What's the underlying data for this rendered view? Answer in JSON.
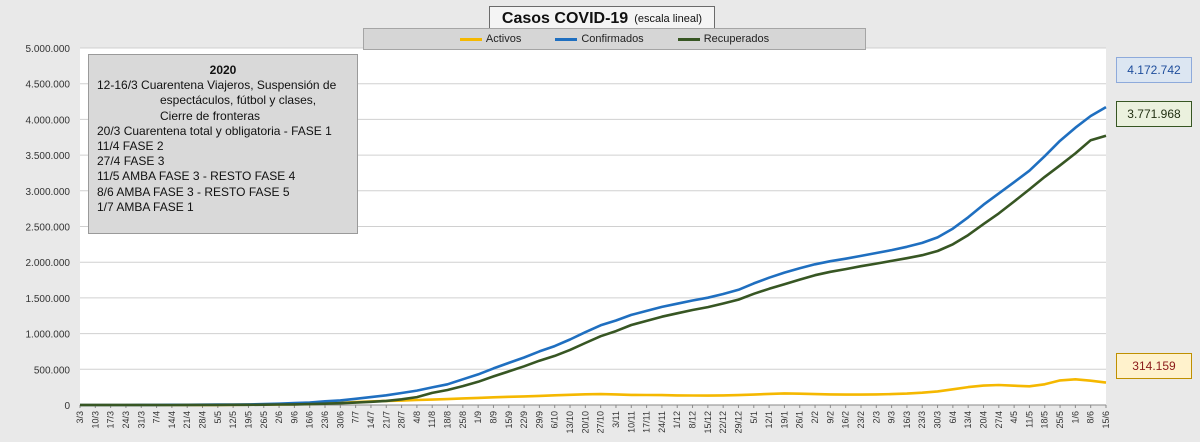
{
  "title": {
    "main": "Casos COVID-19",
    "sub": "(escala lineal)"
  },
  "legend": [
    {
      "label": "Activos",
      "color": "#f5b800"
    },
    {
      "label": "Confirmados",
      "color": "#1f6fc0"
    },
    {
      "label": "Recuperados",
      "color": "#375623"
    }
  ],
  "notes": {
    "heading": "2020",
    "lines": [
      "12-16/3  Cuarentena Viajeros, Suspensión de",
      "espectáculos, fútbol y clases,",
      "Cierre de fronteras",
      "20/3 Cuarentena total y obligatoria - FASE 1",
      "11/4 FASE 2",
      "27/4 FASE 3",
      "11/5 AMBA FASE 3  - RESTO FASE 4",
      "8/6 AMBA FASE 3  - RESTO FASE 5",
      "1/7 AMBA FASE 1"
    ]
  },
  "callouts": {
    "confirmados": {
      "text": "4.172.742",
      "color": "#1f4e9c",
      "bg": "#dce6f2",
      "border": "#8eaadb"
    },
    "recuperados": {
      "text": "3.771.968",
      "color": "#1f2d0f",
      "bg": "#ebf1de",
      "border": "#375623"
    },
    "activos": {
      "text": "314.159",
      "color": "#8b1a1a",
      "bg": "#fff2cc",
      "border": "#bf9000"
    }
  },
  "chart_data": {
    "type": "line",
    "title": "Casos COVID-19",
    "subtitle": "(escala lineal)",
    "xlabel": "",
    "ylabel": "",
    "ylim": [
      0,
      5000000
    ],
    "yticks": [
      0,
      500000,
      1000000,
      1500000,
      2000000,
      2500000,
      3000000,
      3500000,
      4000000,
      4500000,
      5000000
    ],
    "ytick_labels": [
      "0",
      "500.000",
      "1.000.000",
      "1.500.000",
      "2.000.000",
      "2.500.000",
      "3.000.000",
      "3.500.000",
      "4.000.000",
      "4.500.000",
      "5.000.000"
    ],
    "grid": true,
    "legend_position": "top",
    "x_ticks": [
      "3/3",
      "10/3",
      "17/3",
      "24/3",
      "31/3",
      "7/4",
      "14/4",
      "21/4",
      "28/4",
      "5/5",
      "12/5",
      "19/5",
      "26/5",
      "2/6",
      "9/6",
      "16/6",
      "23/6",
      "30/6",
      "7/7",
      "14/7",
      "21/7",
      "28/7",
      "4/8",
      "11/8",
      "18/8",
      "25/8",
      "1/9",
      "8/9",
      "15/9",
      "22/9",
      "29/9",
      "6/10",
      "13/10",
      "20/10",
      "27/10",
      "3/11",
      "10/11",
      "17/11",
      "24/11",
      "1/12",
      "8/12",
      "15/12",
      "22/12",
      "29/12",
      "5/1",
      "12/1",
      "19/1",
      "26/1",
      "2/2",
      "9/2",
      "16/2",
      "23/2",
      "2/3",
      "9/3",
      "16/3",
      "23/3",
      "30/3",
      "6/4",
      "13/4",
      "20/4",
      "27/4",
      "4/5",
      "11/5",
      "18/5",
      "25/5",
      "1/6",
      "8/6",
      "15/6"
    ],
    "series": [
      {
        "name": "Activos",
        "color": "#f5b800",
        "values": [
          0,
          0,
          0,
          400,
          900,
          1200,
          1400,
          1600,
          1700,
          2000,
          2800,
          3800,
          5000,
          8000,
          10000,
          15000,
          22000,
          30000,
          40000,
          50000,
          58000,
          62000,
          70000,
          75000,
          82000,
          92000,
          100000,
          108000,
          115000,
          120000,
          128000,
          136000,
          143000,
          150000,
          152000,
          148000,
          142000,
          140000,
          138000,
          135000,
          133000,
          132000,
          134000,
          138000,
          145000,
          155000,
          162000,
          158000,
          152000,
          148000,
          146000,
          145000,
          148000,
          152000,
          160000,
          172000,
          190000,
          220000,
          250000,
          272000,
          280000,
          270000,
          262000,
          290000,
          345000,
          360000,
          340000,
          314159
        ]
      },
      {
        "name": "Confirmados",
        "color": "#1f6fc0",
        "values": [
          1,
          17,
          65,
          387,
          1054,
          1628,
          2272,
          3031,
          4285,
          5208,
          6563,
          8796,
          12615,
          18319,
          25987,
          35552,
          52457,
          64530,
          87030,
          111160,
          136118,
          167416,
          201919,
          246499,
          290000,
          359638,
          428239,
          512293,
          589012,
          664799,
          751001,
          824468,
          917035,
          1018999,
          1116609,
          1183131,
          1262476,
          1318384,
          1374631,
          1418807,
          1463110,
          1503222,
          1555279,
          1613928,
          1703352,
          1783047,
          1853830,
          1915362,
          1970009,
          2013788,
          2048693,
          2088540,
          2129155,
          2169694,
          2216000,
          2270000,
          2347000,
          2470000,
          2629000,
          2805000,
          2964000,
          3120000,
          3281000,
          3484000,
          3702000,
          3884000,
          4048000,
          4172742
        ]
      },
      {
        "name": "Recuperados",
        "color": "#375623",
        "values": [
          0,
          2,
          5,
          40,
          200,
          400,
          600,
          900,
          1300,
          1700,
          2300,
          3200,
          4500,
          6500,
          9000,
          13000,
          18000,
          25000,
          33000,
          45000,
          58000,
          80000,
          110000,
          170000,
          210000,
          265000,
          325000,
          400000,
          470000,
          542000,
          620000,
          688000,
          772000,
          868000,
          964000,
          1035000,
          1120000,
          1178000,
          1236000,
          1284000,
          1330000,
          1371000,
          1421000,
          1476000,
          1558000,
          1628000,
          1692000,
          1757000,
          1818000,
          1866000,
          1903000,
          1944000,
          1981000,
          2018000,
          2056000,
          2098000,
          2157000,
          2250000,
          2379000,
          2533000,
          2684000,
          2850000,
          3019000,
          3194000,
          3357000,
          3524000,
          3708000,
          3771968
        ]
      }
    ]
  }
}
